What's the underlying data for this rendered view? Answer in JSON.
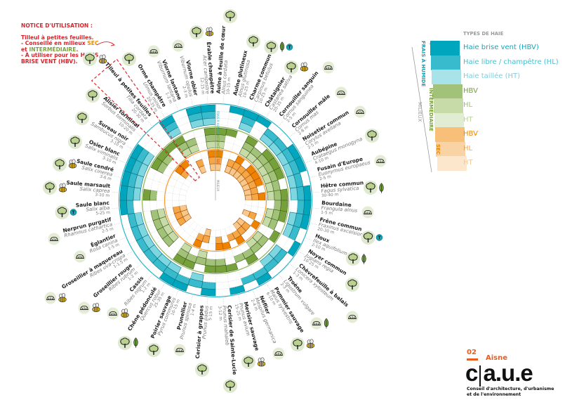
{
  "notice": {
    "title": "NOTICE D'UTILISATION :",
    "line1": "Tilleul à petites feuilles.",
    "line2_a": "- Conseillé en milieux ",
    "line2_b": "SEC",
    "line3_a": "et ",
    "line3_b": "INTERMÉDIAIRE",
    "line3_c": ".",
    "line4": "- À utiliser pour les HAIES",
    "line5": "BRISE VENT (HBV).",
    "highlight_color": "#e3262d"
  },
  "wheel": {
    "axis_labels": {
      "frais": "FRAIS À HUMIDE",
      "inter": "INTERMÉDIAIRE",
      "sec": "SEC",
      "milieux": "MILIEUX"
    },
    "ring_order": [
      "frais-HBV",
      "frais-HL",
      "frais-HT",
      "inter-HBV",
      "inter-HL",
      "inter-HT",
      "sec-HBV",
      "sec-HL",
      "sec-HT"
    ],
    "colors": {
      "frais": [
        "#00a6bd",
        "#38bccd",
        "#7dd6e0"
      ],
      "inter": [
        "#76a03a",
        "#a2c179",
        "#c7dba8"
      ],
      "sec": [
        "#ef8300",
        "#f5a646",
        "#f9c789"
      ]
    },
    "highlighted_species": "Tilleul à petites feuilles"
  },
  "species": [
    {
      "name": "Aulne à feuille de cœur",
      "latin": "Alnus cordata",
      "height": "10-15 m",
      "pattern": "000111111",
      "icons": [
        "tree"
      ]
    },
    {
      "name": "Aulne glutineux",
      "latin": "Alnus glutinosa",
      "height": "10-25 m",
      "pattern": "100100000",
      "icons": [
        "tree"
      ]
    },
    {
      "name": "Charme commun",
      "latin": "Carpinus betulus",
      "height": "10-25 m",
      "pattern": "111000011",
      "icons": [
        "tree",
        "leaf",
        "T"
      ]
    },
    {
      "name": "Châtaignier",
      "latin": "Castanea sativa",
      "height": "20-35 m",
      "pattern": "100111111",
      "icons": [
        "tree",
        "bee"
      ]
    },
    {
      "name": "Cornouiller sanguin",
      "latin": "Cornus sanguinea",
      "height": "2-5 m",
      "pattern": "011011011",
      "icons": [
        "shrub"
      ]
    },
    {
      "name": "Cornouiller mâle",
      "latin": "Cornus mas",
      "height": "2-8 m",
      "pattern": "011111111",
      "icons": [
        "shrub"
      ]
    },
    {
      "name": "Noisetier commun",
      "latin": "Corylus avellana",
      "height": "2-5 m",
      "pattern": "111111111",
      "icons": [
        "shrub"
      ]
    },
    {
      "name": "Aubépine",
      "latin": "Crataegus monogyna",
      "height": "4-10 m",
      "pattern": "111111111",
      "icons": [
        "tree"
      ]
    },
    {
      "name": "Fusain d'Europe",
      "latin": "Euonymus europaeus",
      "height": "2-5 m",
      "pattern": "011011011",
      "icons": [
        "shrub"
      ]
    },
    {
      "name": "Hêtre commun",
      "latin": "Fagus sylvatica",
      "height": "30-40 m",
      "pattern": "111111111",
      "icons": [
        "tree",
        "leaf"
      ]
    },
    {
      "name": "Bourdaine",
      "latin": "Frangula alnus",
      "height": "1-5 m",
      "pattern": "110110000",
      "icons": [
        "shrub"
      ]
    },
    {
      "name": "Frêne commun",
      "latin": "Fraxinus excelsior",
      "height": "20-30 m",
      "pattern": "111111000",
      "icons": [
        "tree",
        "T"
      ]
    },
    {
      "name": "Houx",
      "latin": "Ilex aquifolium",
      "height": "2-10 m",
      "pattern": "011011011",
      "icons": [
        "tree",
        "leaf"
      ]
    },
    {
      "name": "Noyer commun",
      "latin": "Juglans regia",
      "height": "10-25 m",
      "pattern": "100100100",
      "icons": [
        "tree"
      ]
    },
    {
      "name": "Chèvrefeuille à balais",
      "latin": "Lonicera xylosteum",
      "height": "1-3 m",
      "pattern": "011011011",
      "icons": [
        "shrub"
      ]
    },
    {
      "name": "Troène",
      "latin": "Ligustrum vulgare",
      "height": "2-3 m",
      "pattern": "011011011",
      "icons": [
        "shrub",
        "leaf"
      ]
    },
    {
      "name": "Pommier sauvage",
      "latin": "Malus sylvestris",
      "height": "6-10 m",
      "pattern": "110110110",
      "icons": [
        "tree",
        "bee"
      ]
    },
    {
      "name": "Néflier",
      "latin": "Mespilus germanica",
      "height": "2-4 m",
      "pattern": "010010010",
      "icons": [
        "shrub"
      ]
    },
    {
      "name": "Merisier sauvage",
      "latin": "Prunus avium",
      "height": "15-25 m",
      "pattern": "100100100",
      "icons": [
        "tree",
        "bee"
      ]
    },
    {
      "name": "Cerisier de Sainte-Lucie",
      "latin": "Prunus mahaleb",
      "height": "3-12 m",
      "pattern": "000110110",
      "icons": [
        "tree"
      ]
    },
    {
      "name": "Cerisier à grappes",
      "latin": "Prunus padus",
      "height": "5-15 m",
      "pattern": "110110000",
      "icons": [
        "tree"
      ]
    },
    {
      "name": "Prunellier",
      "latin": "Prunus spinosa",
      "height": "1-4 m",
      "pattern": "011011011",
      "icons": [
        "shrub"
      ]
    },
    {
      "name": "Poirier sauvage",
      "latin": "Pyrus communis",
      "height": "10-15 m",
      "pattern": "110110110",
      "icons": [
        "tree"
      ]
    },
    {
      "name": "Chêne pédonculé",
      "latin": "Quercus robur",
      "height": "25-35 m",
      "pattern": "111111000",
      "icons": [
        "tree",
        "leaf"
      ]
    },
    {
      "name": "Cassis",
      "latin": "Ribes nigrum",
      "height": "1-2 m",
      "pattern": "011000000",
      "icons": [
        "shrub",
        "bee"
      ]
    },
    {
      "name": "Groseillier rouge",
      "latin": "Ribes rubrum",
      "height": "1-2 m",
      "pattern": "011011000",
      "icons": [
        "shrub",
        "bee"
      ]
    },
    {
      "name": "Groseillier à maquereau",
      "latin": "Ribes uva-crispa",
      "height": "1-1.5 m",
      "pattern": "011011011",
      "icons": [
        "shrub",
        "bee"
      ]
    },
    {
      "name": "Églantier",
      "latin": "Rosa canina",
      "height": "1-5 m",
      "pattern": "011011011",
      "icons": [
        "shrub"
      ]
    },
    {
      "name": "Nerprun purgatif",
      "latin": "Rhamnus cathartica",
      "height": "2-5 m",
      "pattern": "011011011",
      "icons": [
        "shrub"
      ]
    },
    {
      "name": "Saule blanc",
      "latin": "Salix alba",
      "height": "5-25 m",
      "pattern": "110000000",
      "icons": [
        "tree",
        "T"
      ]
    },
    {
      "name": "Saule marsault",
      "latin": "Salix caprea",
      "height": "3-10 m",
      "pattern": "111110000",
      "icons": [
        "tree",
        "bee"
      ]
    },
    {
      "name": "Saule cendré",
      "latin": "Salix cinerea",
      "height": "3-6 m",
      "pattern": "111000000",
      "icons": [
        "tree",
        "bee"
      ]
    },
    {
      "name": "Osier blanc",
      "latin": "Salix viminalis",
      "height": "3-10 m",
      "pattern": "111000000",
      "icons": [
        "tree"
      ]
    },
    {
      "name": "Sureau noir",
      "latin": "Sambucus nigra",
      "height": "3-10 m",
      "pattern": "111110000",
      "icons": [
        "tree"
      ]
    },
    {
      "name": "Alisier torminal",
      "latin": "Sorbus torminalis",
      "height": "10-20 m",
      "pattern": "000110110",
      "icons": [
        "tree"
      ]
    },
    {
      "name": "Tilleul à petites feuilles",
      "latin": "Tilia cordata",
      "height": "20-30 m",
      "pattern": "000100100",
      "icons": [
        "tree",
        "bee"
      ]
    },
    {
      "name": "Orme champêtre",
      "latin": "Ulmus minor",
      "height": "20-35 m",
      "pattern": "111111000",
      "icons": [
        "tree"
      ]
    },
    {
      "name": "Viorne lantane",
      "latin": "Viburnum lantana",
      "height": "1-3 m",
      "pattern": "000011011",
      "icons": [
        "shrub"
      ]
    },
    {
      "name": "Viorne obier",
      "latin": "Viburnum opulus",
      "height": "2-3 m",
      "pattern": "111000000",
      "icons": [
        "shrub"
      ]
    },
    {
      "name": "Érable champêtre",
      "latin": "Acer campestre",
      "height": "12-15 m",
      "pattern": "111111111",
      "icons": [
        "tree",
        "bee"
      ]
    }
  ],
  "legend": {
    "title": "TYPES DE HAIE",
    "rows": [
      {
        "label": "Haie brise vent (HBV)",
        "color": "#00a6bd",
        "text_color": "#12a9bf"
      },
      {
        "label": "Haie libre / champêtre (HL)",
        "color": "#38bccd",
        "text_color": "#49bfcf"
      },
      {
        "label": "Haie taillée (HT)",
        "color": "#a9e3ea",
        "text_color": "#7ccfdb"
      },
      {
        "label": "HBV",
        "color": "#a2c179",
        "text_color": "#76a03a"
      },
      {
        "label": "HL",
        "color": "#c7dba8",
        "text_color": "#9fbe73"
      },
      {
        "label": "HT",
        "color": "#e2ecd2",
        "text_color": "#bcd39a"
      },
      {
        "label": "HBV",
        "color": "#f7bf78",
        "text_color": "#ef8300"
      },
      {
        "label": "HL",
        "color": "#f9d3a4",
        "text_color": "#f5a646"
      },
      {
        "label": "HT",
        "color": "#fce6cc",
        "text_color": "#f9c789"
      }
    ],
    "milieux": {
      "frais": "FRAIS À HUMIDE",
      "inter": "INTERMÉDIAIRE",
      "sec": "SEC",
      "all": "MILIEUX"
    }
  },
  "logo": {
    "number": "02",
    "dept": "Aisne",
    "name": "c a.u.e",
    "subtitle1": "Conseil d'architecture, d'urbanisme",
    "subtitle2": "et de l'environnement"
  }
}
